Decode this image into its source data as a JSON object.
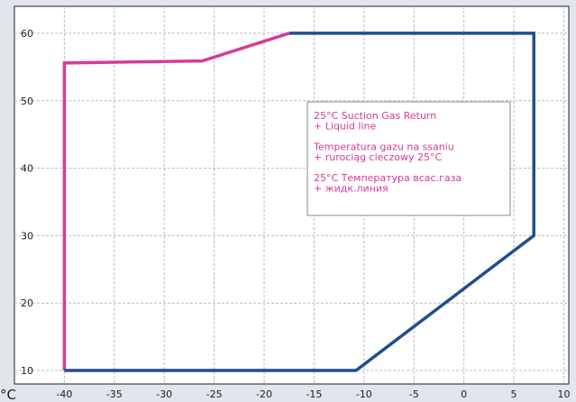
{
  "chart_data": {
    "type": "line",
    "x_unit_label": "°C",
    "xlim": [
      -45,
      10.5
    ],
    "ylim": [
      8,
      64
    ],
    "x_ticks": [
      -40,
      -35,
      -30,
      -25,
      -20,
      -15,
      -10,
      -5,
      0,
      5,
      10
    ],
    "y_ticks": [
      10,
      20,
      30,
      40,
      50,
      60
    ],
    "grid": true,
    "series": [
      {
        "color": "#d63a96",
        "x": [
          -40,
          -40,
          -26.2,
          -17.5
        ],
        "y": [
          10,
          55.6,
          55.9,
          60
        ]
      },
      {
        "color": "#1f4e8c",
        "x": [
          -40,
          -10.8,
          7,
          7,
          -17.5
        ],
        "y": [
          10,
          10,
          30,
          60,
          60
        ]
      }
    ],
    "annotation": {
      "color": "#d63a96",
      "lines": [
        "25°C Suction Gas Return",
        "+ Liquid line",
        "",
        "Temperatura gazu na ssaniu",
        "+ rurociąg cieczowy 25°C",
        "",
        "25°C Температура всас.газа",
        "+ жидк.линия"
      ]
    }
  }
}
